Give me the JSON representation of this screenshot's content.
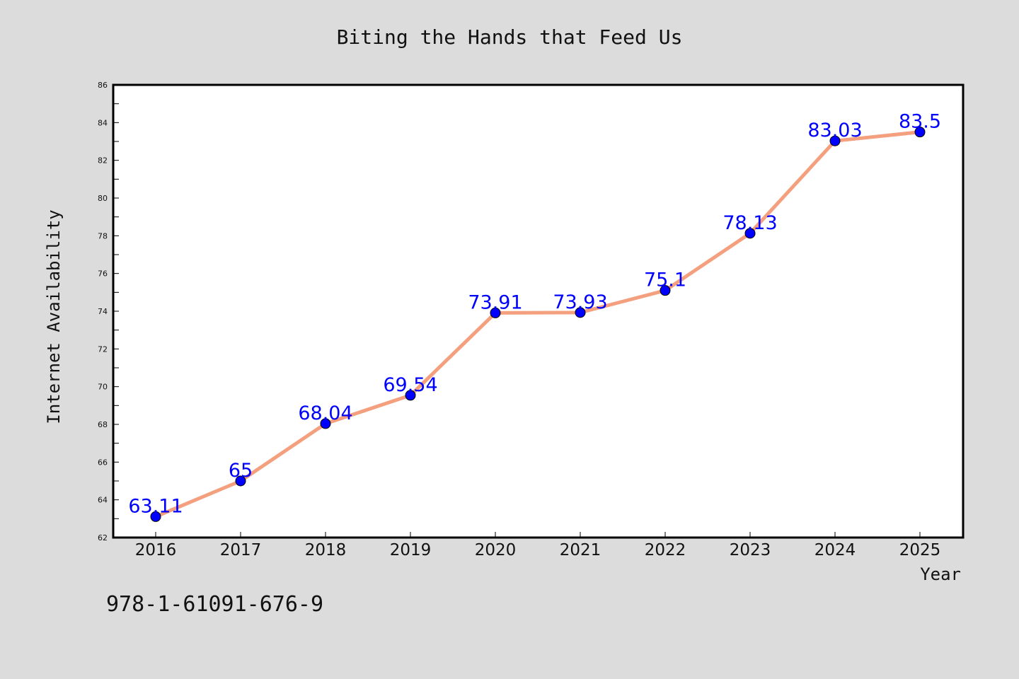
{
  "chart_data": {
    "type": "line",
    "title": "Biting the Hands that Feed Us",
    "xlabel": "Year",
    "ylabel": "Internet Availability",
    "categories": [
      "2016",
      "2017",
      "2018",
      "2019",
      "2020",
      "2021",
      "2022",
      "2023",
      "2024",
      "2025"
    ],
    "series": [
      {
        "values": [
          63.11,
          65,
          68.04,
          69.54,
          73.91,
          73.93,
          75.1,
          78.13,
          83.03,
          83.5
        ],
        "data_labels": [
          "63.11",
          "65",
          "68.04",
          "69.54",
          "73.91",
          "73.93",
          "75.1",
          "78.13",
          "83.03",
          "83.5"
        ],
        "line_color": "#f4a07e",
        "marker_color": "#0000ff"
      }
    ],
    "ylim": [
      62,
      86
    ],
    "yticks": [
      "62",
      "64",
      "66",
      "68",
      "70",
      "72",
      "74",
      "76",
      "78",
      "80",
      "82",
      "84",
      "86"
    ],
    "grid": false,
    "legend": "none"
  },
  "footnote": "978-1-61091-676-9",
  "colors": {
    "background": "#dcdcdc",
    "plot_background": "#ffffff",
    "label_color": "#0000ff"
  }
}
